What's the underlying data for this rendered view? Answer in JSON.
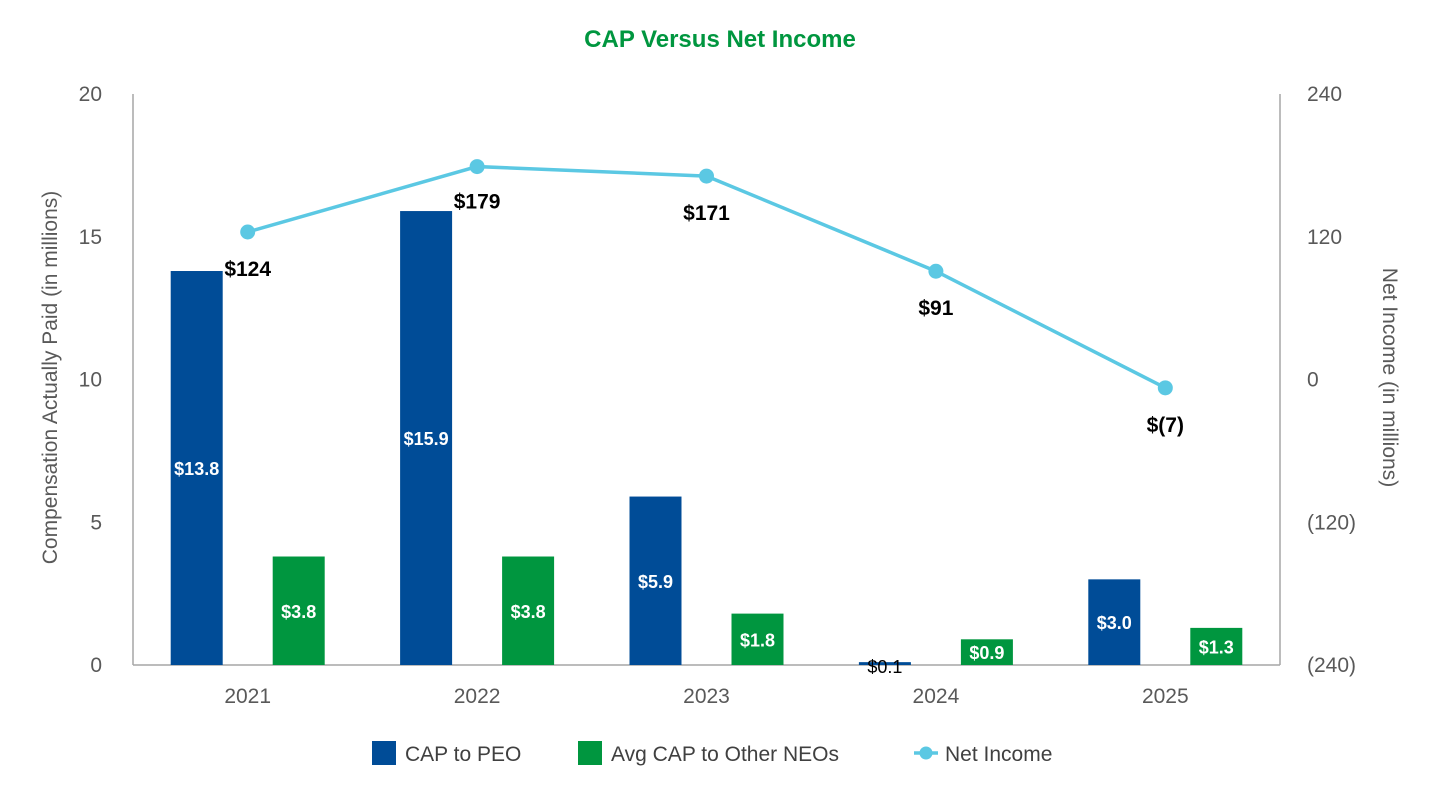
{
  "chart_data": {
    "type": "bar",
    "title": "CAP Versus Net Income",
    "categories": [
      "2021",
      "2022",
      "2023",
      "2024",
      "2025"
    ],
    "ylabel": "Compensation Actually Paid (in millions)",
    "y2label": "Net Income (in millions)",
    "ylim": [
      0,
      20
    ],
    "y2lim": [
      -240,
      240
    ],
    "yticks": [
      "0",
      "5",
      "10",
      "15",
      "20"
    ],
    "y2ticks": [
      "(240)",
      "(120)",
      "0",
      "120",
      "240"
    ],
    "grid": false,
    "legend_position": "bottom",
    "series": [
      {
        "name": "CAP to PEO",
        "type": "bar",
        "axis": "left",
        "values": [
          13.8,
          15.9,
          5.9,
          0.1,
          3.0
        ],
        "labels": [
          "$13.8",
          "$15.9",
          "$5.9",
          "$0.1",
          "$3.0"
        ]
      },
      {
        "name": "Avg CAP to Other NEOs",
        "type": "bar",
        "axis": "left",
        "values": [
          3.8,
          3.8,
          1.8,
          0.9,
          1.3
        ],
        "labels": [
          "$3.8",
          "$3.8",
          "$1.8",
          "$0.9",
          "$1.3"
        ]
      },
      {
        "name": "Net Income",
        "type": "line",
        "axis": "right",
        "values": [
          124,
          179,
          171,
          91,
          -7
        ],
        "labels": [
          "$124",
          "$179",
          "$171",
          "$91",
          "$(7)"
        ]
      }
    ],
    "colors": {
      "title": "#00963F",
      "peo": "#004C97",
      "neo": "#00963F",
      "net_income": "#5BC8E3",
      "axis": "#A6A6A6"
    }
  }
}
